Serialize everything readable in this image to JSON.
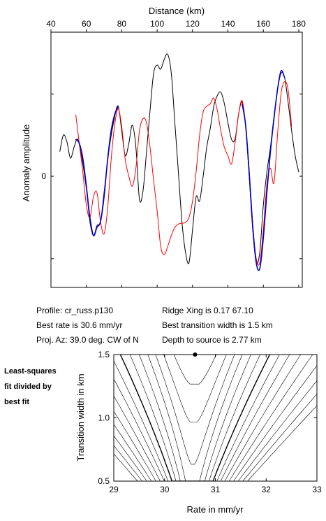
{
  "chart_data": [
    {
      "type": "line",
      "xlabel": "Distance (km)",
      "ylabel": "Anomaly amplitude",
      "xlim": [
        40,
        182
      ],
      "x_ticks": [
        40,
        60,
        80,
        100,
        120,
        140,
        160,
        180
      ],
      "y_ticks": [
        0
      ],
      "ylim": [
        -1.35,
        1.75
      ],
      "series": [
        {
          "color": "#000000",
          "points": [
            [
              45,
              0.3
            ],
            [
              47,
              0.5
            ],
            [
              49,
              0.42
            ],
            [
              51,
              0.22
            ],
            [
              53,
              0.35
            ],
            [
              55,
              0.45
            ],
            [
              57,
              0.28
            ],
            [
              60,
              -0.15
            ],
            [
              62,
              -0.55
            ],
            [
              64,
              -0.72
            ],
            [
              66,
              -0.6
            ],
            [
              68,
              -0.55
            ],
            [
              70,
              -0.2
            ],
            [
              73,
              0.35
            ],
            [
              76,
              0.72
            ],
            [
              78,
              0.85
            ],
            [
              80,
              0.55
            ],
            [
              82,
              0.25
            ],
            [
              84,
              0.4
            ],
            [
              86,
              0.62
            ],
            [
              88,
              0.35
            ],
            [
              90,
              -0.28
            ],
            [
              92,
              -0.18
            ],
            [
              94,
              0.3
            ],
            [
              96,
              0.8
            ],
            [
              98,
              1.25
            ],
            [
              100,
              1.35
            ],
            [
              102,
              1.3
            ],
            [
              104,
              1.42
            ],
            [
              106,
              1.48
            ],
            [
              108,
              1.25
            ],
            [
              110,
              0.65
            ],
            [
              112,
              0.05
            ],
            [
              114,
              -0.55
            ],
            [
              116,
              -0.92
            ],
            [
              118,
              -1.05
            ],
            [
              120,
              -0.65
            ],
            [
              122,
              -0.25
            ],
            [
              124,
              -0.3
            ],
            [
              126,
              0.0
            ],
            [
              128,
              0.35
            ],
            [
              130,
              0.58
            ],
            [
              132,
              0.85
            ],
            [
              134,
              0.98
            ],
            [
              136,
              1.02
            ],
            [
              138,
              0.88
            ],
            [
              140,
              0.65
            ],
            [
              142,
              0.45
            ],
            [
              144,
              0.45
            ],
            [
              146,
              0.75
            ],
            [
              148,
              0.9
            ],
            [
              150,
              0.6
            ],
            [
              152,
              0.0
            ],
            [
              154,
              -0.65
            ],
            [
              156,
              -1.05
            ],
            [
              158,
              -0.92
            ],
            [
              160,
              -0.35
            ],
            [
              162,
              0.05
            ],
            [
              164,
              0.35
            ],
            [
              166,
              0.72
            ],
            [
              168,
              1.05
            ],
            [
              170,
              1.25
            ],
            [
              172,
              1.2
            ],
            [
              174,
              0.9
            ],
            [
              176,
              0.55
            ],
            [
              178,
              0.25
            ],
            [
              180,
              0.05
            ]
          ]
        },
        {
          "color": "#ff0000",
          "points": [
            [
              54,
              0.75
            ],
            [
              56,
              0.4
            ],
            [
              58,
              0.05
            ],
            [
              60,
              -0.35
            ],
            [
              62,
              -0.5
            ],
            [
              64,
              -0.25
            ],
            [
              66,
              -0.2
            ],
            [
              68,
              -0.55
            ],
            [
              70,
              -0.7
            ],
            [
              72,
              -0.4
            ],
            [
              74,
              0.2
            ],
            [
              76,
              0.62
            ],
            [
              78,
              0.82
            ],
            [
              80,
              0.6
            ],
            [
              82,
              0.2
            ],
            [
              84,
              0.0
            ],
            [
              86,
              -0.12
            ],
            [
              88,
              0.1
            ],
            [
              90,
              0.55
            ],
            [
              92,
              0.7
            ],
            [
              94,
              0.65
            ],
            [
              96,
              0.35
            ],
            [
              98,
              -0.05
            ],
            [
              100,
              -0.42
            ],
            [
              102,
              -0.85
            ],
            [
              104,
              -0.95
            ],
            [
              106,
              -0.85
            ],
            [
              108,
              -0.72
            ],
            [
              110,
              -0.62
            ],
            [
              112,
              -0.58
            ],
            [
              114,
              -0.57
            ],
            [
              116,
              -0.56
            ],
            [
              118,
              -0.5
            ],
            [
              120,
              -0.3
            ],
            [
              122,
              0.05
            ],
            [
              124,
              0.5
            ],
            [
              126,
              0.78
            ],
            [
              128,
              0.85
            ],
            [
              130,
              0.88
            ],
            [
              132,
              0.95
            ],
            [
              134,
              0.8
            ],
            [
              136,
              0.55
            ],
            [
              138,
              0.35
            ],
            [
              140,
              0.25
            ],
            [
              142,
              0.15
            ],
            [
              144,
              0.4
            ],
            [
              146,
              0.75
            ],
            [
              148,
              0.92
            ],
            [
              150,
              0.62
            ],
            [
              152,
              0.05
            ],
            [
              154,
              -0.6
            ],
            [
              156,
              -1.0
            ],
            [
              158,
              -1.05
            ],
            [
              160,
              -0.65
            ],
            [
              162,
              -0.1
            ],
            [
              164,
              0.1
            ],
            [
              166,
              -0.08
            ],
            [
              168,
              0.5
            ],
            [
              170,
              1.0
            ],
            [
              172,
              1.15
            ],
            [
              174,
              1.05
            ],
            [
              176,
              0.6
            ]
          ]
        },
        {
          "color": "#0000cc",
          "points": [
            [
              54,
              0.45
            ],
            [
              56,
              0.4
            ],
            [
              58,
              0.22
            ],
            [
              60,
              -0.12
            ],
            [
              62,
              -0.5
            ],
            [
              64,
              -0.72
            ],
            [
              66,
              -0.62
            ],
            [
              68,
              -0.55
            ],
            [
              70,
              -0.25
            ],
            [
              72,
              0.2
            ],
            [
              74,
              0.55
            ],
            [
              76,
              0.75
            ],
            [
              78,
              0.85
            ]
          ]
        },
        {
          "color": "#0000cc",
          "points": [
            [
              148,
              0.88
            ],
            [
              150,
              0.62
            ],
            [
              152,
              0.05
            ],
            [
              154,
              -0.6
            ],
            [
              156,
              -1.05
            ],
            [
              158,
              -1.12
            ],
            [
              160,
              -0.75
            ],
            [
              162,
              -0.2
            ],
            [
              164,
              0.3
            ],
            [
              166,
              0.7
            ],
            [
              168,
              1.05
            ],
            [
              170,
              1.28
            ],
            [
              172,
              1.2
            ]
          ]
        }
      ]
    },
    {
      "type": "contour",
      "xlabel": "Rate in mm/yr",
      "ylabel": "Transition width in km",
      "xlim": [
        29,
        33
      ],
      "ylim": [
        0.5,
        1.5
      ],
      "x_ticks": [
        29,
        30,
        31,
        32,
        33
      ],
      "y_ticks": [
        "0.5",
        "1.0",
        "1.5"
      ],
      "best_fit_point": [
        30.6,
        1.5
      ],
      "contour_levels": [
        0.1,
        0.22,
        0.35,
        0.5,
        0.7,
        0.95,
        1.25,
        1.6,
        2.0,
        2.5,
        3.1,
        3.8,
        4.6,
        5.5,
        6.5
      ],
      "bold_level_index": 6
    }
  ],
  "info": {
    "profile": "Profile: cr_russ.p130",
    "best_rate": "Best rate is 30.6 mm/yr",
    "proj_az": "Proj. Az: 39.0 deg. CW of N",
    "ridge_xing": "Ridge Xing is 0.17 67.10",
    "best_width": "Best transition width is 1.5 km",
    "depth": "Depth to source is   2.77 km"
  },
  "side_note": [
    "Least-squares",
    "fit divided by",
    "best fit"
  ]
}
